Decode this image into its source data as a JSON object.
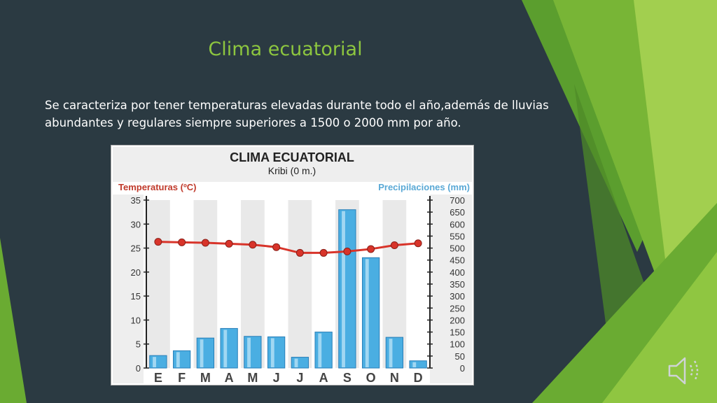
{
  "slide": {
    "title": "Clima ecuatorial",
    "body": "Se caracteriza por tener temperaturas elevadas durante todo el año,además de lluvias abundantes y regulares siempre superiores a 1500 o 2000 mm por año."
  },
  "colors": {
    "background": "#2b3a42",
    "title": "#8dc63f",
    "bar": "#4aaee2",
    "temperature_line": "#d8342a",
    "temp_label": "#c03a2b",
    "precip_label": "#5aa9d6"
  },
  "icons": {
    "audio": "speaker-icon"
  },
  "chart_data": {
    "type": "bar",
    "title": "CLIMA ECUATORIAL",
    "subtitle": "Kribi (0 m.)",
    "categories": [
      "E",
      "F",
      "M",
      "A",
      "M",
      "J",
      "J",
      "A",
      "S",
      "O",
      "N",
      "D"
    ],
    "precip_label": "Precipilaciones (mm)",
    "temp_label": "Temperaturas (ºC)",
    "precipitation": [
      52,
      72,
      125,
      165,
      132,
      130,
      45,
      150,
      660,
      460,
      128,
      30
    ],
    "temperature": [
      26.3,
      26.2,
      26.1,
      25.9,
      25.7,
      25.2,
      24.0,
      24.0,
      24.3,
      24.8,
      25.6,
      26.0
    ],
    "y_left": {
      "min": 0,
      "max": 35,
      "ticks": [
        "0",
        "5",
        "10",
        "15",
        "20",
        "25",
        "30",
        "35"
      ]
    },
    "y_right": {
      "min": 0,
      "max": 700,
      "ticks": [
        "0",
        "50",
        "100",
        "150",
        "200",
        "250",
        "300",
        "350",
        "400",
        "450",
        "500",
        "550",
        "600",
        "650",
        "700"
      ]
    }
  }
}
